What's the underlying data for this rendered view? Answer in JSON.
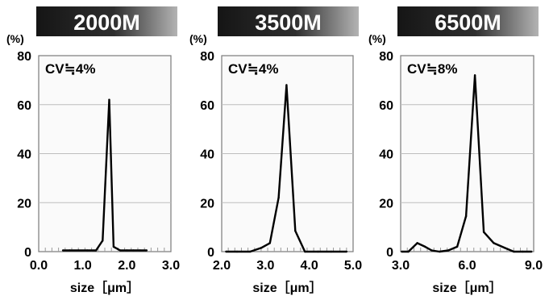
{
  "chart_data": [
    {
      "type": "line",
      "title": "2000M",
      "annotation": "CV≒4%",
      "y_unit": "(%)",
      "xlabel": "size［μm］",
      "xlim": [
        0.0,
        3.0
      ],
      "ylim": [
        0,
        80
      ],
      "x_ticks": [
        "0.0",
        "1.0",
        "2.0",
        "3.0"
      ],
      "y_ticks": [
        "0",
        "20",
        "40",
        "60",
        "80"
      ],
      "grid": true,
      "x": [
        0.55,
        0.7,
        0.9,
        1.1,
        1.3,
        1.45,
        1.6,
        1.7,
        1.85,
        2.0,
        2.15,
        2.3,
        2.45
      ],
      "values": [
        0.5,
        0.5,
        0.5,
        0.5,
        0.5,
        4.5,
        62,
        2,
        0.5,
        0.5,
        0.5,
        0.5,
        0.5
      ]
    },
    {
      "type": "line",
      "title": "3500M",
      "annotation": "CV≒4%",
      "y_unit": "(%)",
      "xlabel": "size［μm］",
      "xlim": [
        2.0,
        5.0
      ],
      "ylim": [
        0,
        80
      ],
      "x_ticks": [
        "2.0",
        "3.0",
        "4.0",
        "5.0"
      ],
      "y_ticks": [
        "0",
        "20",
        "40",
        "60",
        "80"
      ],
      "grid": true,
      "x": [
        2.1,
        2.35,
        2.65,
        2.9,
        3.1,
        3.3,
        3.48,
        3.68,
        3.9,
        4.2,
        4.5,
        4.85
      ],
      "values": [
        0,
        0,
        0,
        1.5,
        3.5,
        22,
        68,
        8.5,
        0,
        0,
        0,
        0
      ]
    },
    {
      "type": "line",
      "title": "6500M",
      "annotation": "CV≒8%",
      "y_unit": "(%)",
      "xlabel": "size［μm］",
      "xlim": [
        3.0,
        9.0
      ],
      "ylim": [
        0,
        80
      ],
      "x_ticks": [
        "3.0",
        "6.0",
        "9.0"
      ],
      "y_ticks": [
        "0",
        "20",
        "40",
        "60",
        "80"
      ],
      "grid": true,
      "x": [
        3.05,
        3.35,
        3.75,
        4.1,
        4.4,
        4.75,
        5.15,
        5.55,
        5.95,
        6.35,
        6.75,
        7.2,
        7.7,
        8.1,
        8.5,
        8.9
      ],
      "values": [
        0,
        0,
        3.5,
        2,
        0.5,
        0,
        0.5,
        2,
        14.5,
        72,
        8,
        3.5,
        1.5,
        0,
        0,
        0
      ]
    }
  ]
}
